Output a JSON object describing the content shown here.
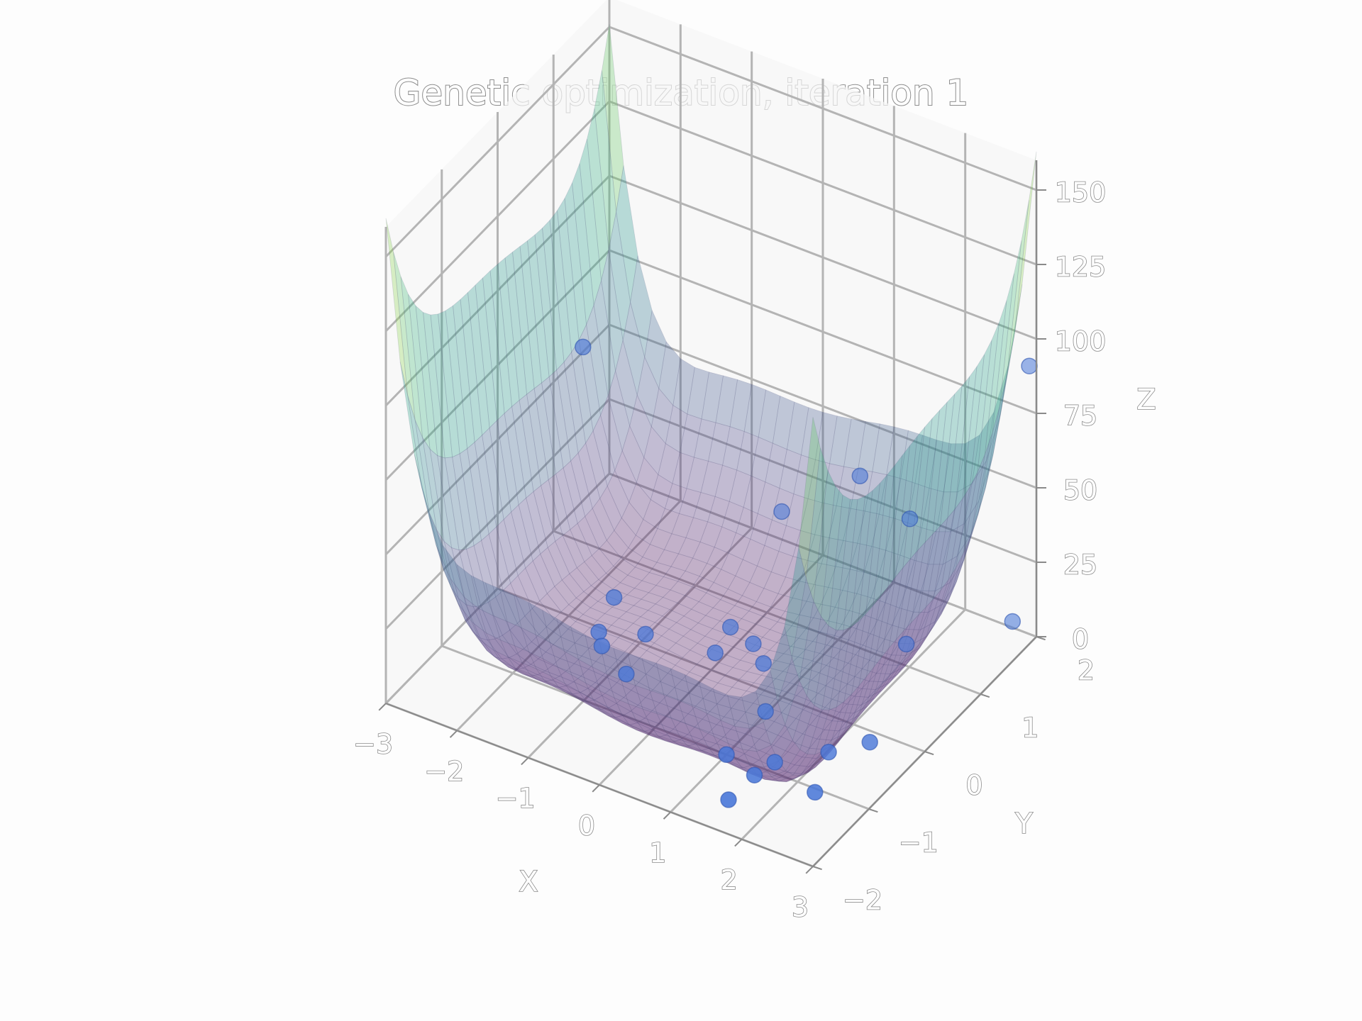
{
  "chart_data": {
    "type": "surface3d+scatter3d",
    "title": "Genetic optimization, iteration 1",
    "xlabel": "X",
    "ylabel": "Y",
    "zlabel": "Z",
    "xlim": [
      -3,
      3
    ],
    "ylim": [
      -2,
      2
    ],
    "zlim": [
      0,
      160
    ],
    "xticks": [
      "−3",
      "−2",
      "−1",
      "0",
      "1",
      "2",
      "3"
    ],
    "xtick_values": [
      -3,
      -2,
      -1,
      0,
      1,
      2,
      3
    ],
    "yticks": [
      "−2",
      "−1",
      "0",
      "1",
      "2"
    ],
    "ytick_values": [
      -2,
      -1,
      0,
      1,
      2
    ],
    "zticks": [
      "0",
      "25",
      "50",
      "75",
      "100",
      "125",
      "150"
    ],
    "ztick_values": [
      0,
      25,
      50,
      75,
      100,
      125,
      150
    ],
    "grid": true,
    "surface": {
      "function": "six-hump camel: (4 - 2.1x^2 + x^4/3)x^2 + xy + (-4 + 4y^2)y^2",
      "colormap": "viridis",
      "alpha": 0.3
    },
    "series": [
      {
        "marker_color": "#4a78d8",
        "points": [
          {
            "x": -2.9,
            "y": 1.4,
            "z": 55
          },
          {
            "x": -0.5,
            "y": 1.9,
            "z": 12
          },
          {
            "x": 0.6,
            "y": 1.9,
            "z": 34
          },
          {
            "x": 1.3,
            "y": 1.9,
            "z": 26
          },
          {
            "x": 2.9,
            "y": 1.7,
            "z": 10
          },
          {
            "x": 2.9,
            "y": 2.0,
            "z": 90
          },
          {
            "x": -1.6,
            "y": 0.3,
            "z": 4
          },
          {
            "x": -1.5,
            "y": -0.1,
            "z": 1
          },
          {
            "x": -1.3,
            "y": -0.3,
            "z": 2
          },
          {
            "x": -1.0,
            "y": 0.1,
            "z": 1
          },
          {
            "x": -0.8,
            "y": -0.5,
            "z": 1
          },
          {
            "x": -0.2,
            "y": 0.6,
            "z": 1
          },
          {
            "x": -0.1,
            "y": 0.2,
            "z": 1
          },
          {
            "x": 0.2,
            "y": 0.5,
            "z": 1
          },
          {
            "x": 0.5,
            "y": 0.3,
            "z": 1
          },
          {
            "x": 1.0,
            "y": -0.3,
            "z": 1
          },
          {
            "x": 1.8,
            "y": 1.2,
            "z": 2
          },
          {
            "x": 1.6,
            "y": -0.9,
            "z": 1
          },
          {
            "x": 1.55,
            "y": -1.2,
            "z": 2
          },
          {
            "x": 1.5,
            "y": -1.6,
            "z": 1
          },
          {
            "x": 2.2,
            "y": -0.7,
            "z": 6
          },
          {
            "x": 2.4,
            "y": -1.2,
            "z": 4
          },
          {
            "x": 2.7,
            "y": -0.6,
            "z": 12
          },
          {
            "x": 1.0,
            "y": -1.0,
            "z": 0
          }
        ]
      }
    ]
  }
}
